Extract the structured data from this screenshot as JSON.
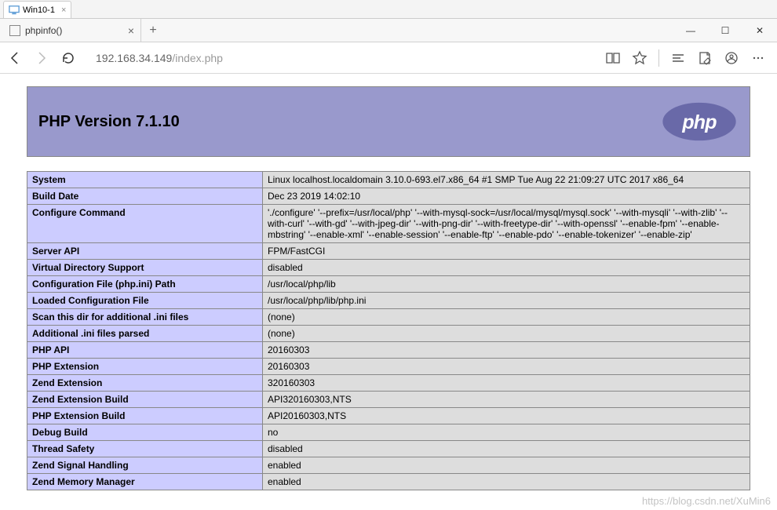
{
  "vm": {
    "tab_label": "Win10-1"
  },
  "browser": {
    "tab_title": "phpinfo()",
    "url_host": "192.168.34.149",
    "url_path": "/index.php",
    "win_min": "—",
    "win_max": "☐",
    "win_close": "✕"
  },
  "php": {
    "header_title": "PHP Version 7.1.10",
    "logo_text": "php",
    "rows": [
      {
        "k": "System",
        "v": "Linux localhost.localdomain 3.10.0-693.el7.x86_64 #1 SMP Tue Aug 22 21:09:27 UTC 2017 x86_64"
      },
      {
        "k": "Build Date",
        "v": "Dec 23 2019 14:02:10"
      },
      {
        "k": "Configure Command",
        "v": "'./configure' '--prefix=/usr/local/php' '--with-mysql-sock=/usr/local/mysql/mysql.sock' '--with-mysqli' '--with-zlib' '--with-curl' '--with-gd' '--with-jpeg-dir' '--with-png-dir' '--with-freetype-dir' '--with-openssl' '--enable-fpm' '--enable-mbstring' '--enable-xml' '--enable-session' '--enable-ftp' '--enable-pdo' '--enable-tokenizer' '--enable-zip'"
      },
      {
        "k": "Server API",
        "v": "FPM/FastCGI"
      },
      {
        "k": "Virtual Directory Support",
        "v": "disabled"
      },
      {
        "k": "Configuration File (php.ini) Path",
        "v": "/usr/local/php/lib"
      },
      {
        "k": "Loaded Configuration File",
        "v": "/usr/local/php/lib/php.ini"
      },
      {
        "k": "Scan this dir for additional .ini files",
        "v": "(none)"
      },
      {
        "k": "Additional .ini files parsed",
        "v": "(none)"
      },
      {
        "k": "PHP API",
        "v": "20160303"
      },
      {
        "k": "PHP Extension",
        "v": "20160303"
      },
      {
        "k": "Zend Extension",
        "v": "320160303"
      },
      {
        "k": "Zend Extension Build",
        "v": "API320160303,NTS"
      },
      {
        "k": "PHP Extension Build",
        "v": "API20160303,NTS"
      },
      {
        "k": "Debug Build",
        "v": "no"
      },
      {
        "k": "Thread Safety",
        "v": "disabled"
      },
      {
        "k": "Zend Signal Handling",
        "v": "enabled"
      },
      {
        "k": "Zend Memory Manager",
        "v": "enabled"
      }
    ]
  },
  "watermark": "https://blog.csdn.net/XuMin6",
  "colors": {
    "header_bg": "#9999cc",
    "key_bg": "#ccccff",
    "val_bg": "#dddddd",
    "border": "#888888",
    "logo_fill": "#6969a8"
  }
}
